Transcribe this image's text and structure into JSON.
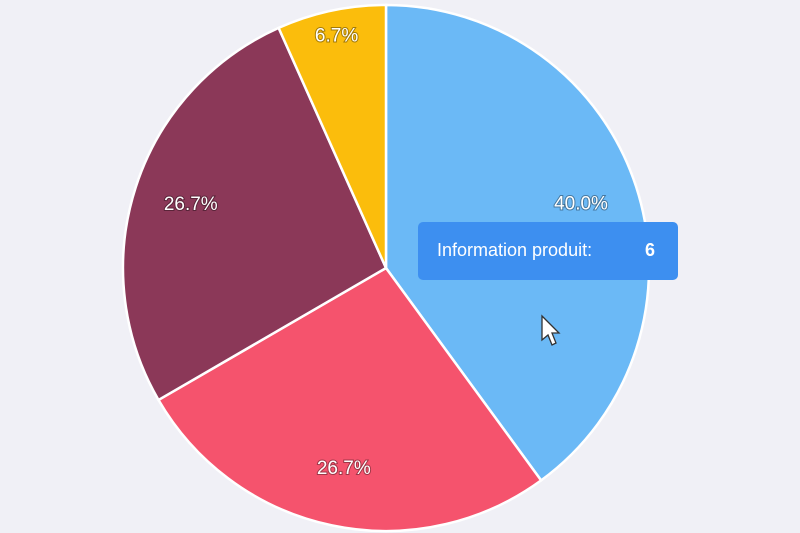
{
  "chart_data": {
    "type": "pie",
    "values": [
      40.0,
      26.7,
      26.7,
      6.7
    ],
    "value_labels": [
      "40.0%",
      "26.7%",
      "26.7%",
      "6.7%"
    ],
    "colors": [
      "#6bb9f6",
      "#f5536d",
      "#8b3858",
      "#fbbd0c"
    ],
    "tooltip": {
      "name": "Information produit:",
      "value": 6
    }
  }
}
